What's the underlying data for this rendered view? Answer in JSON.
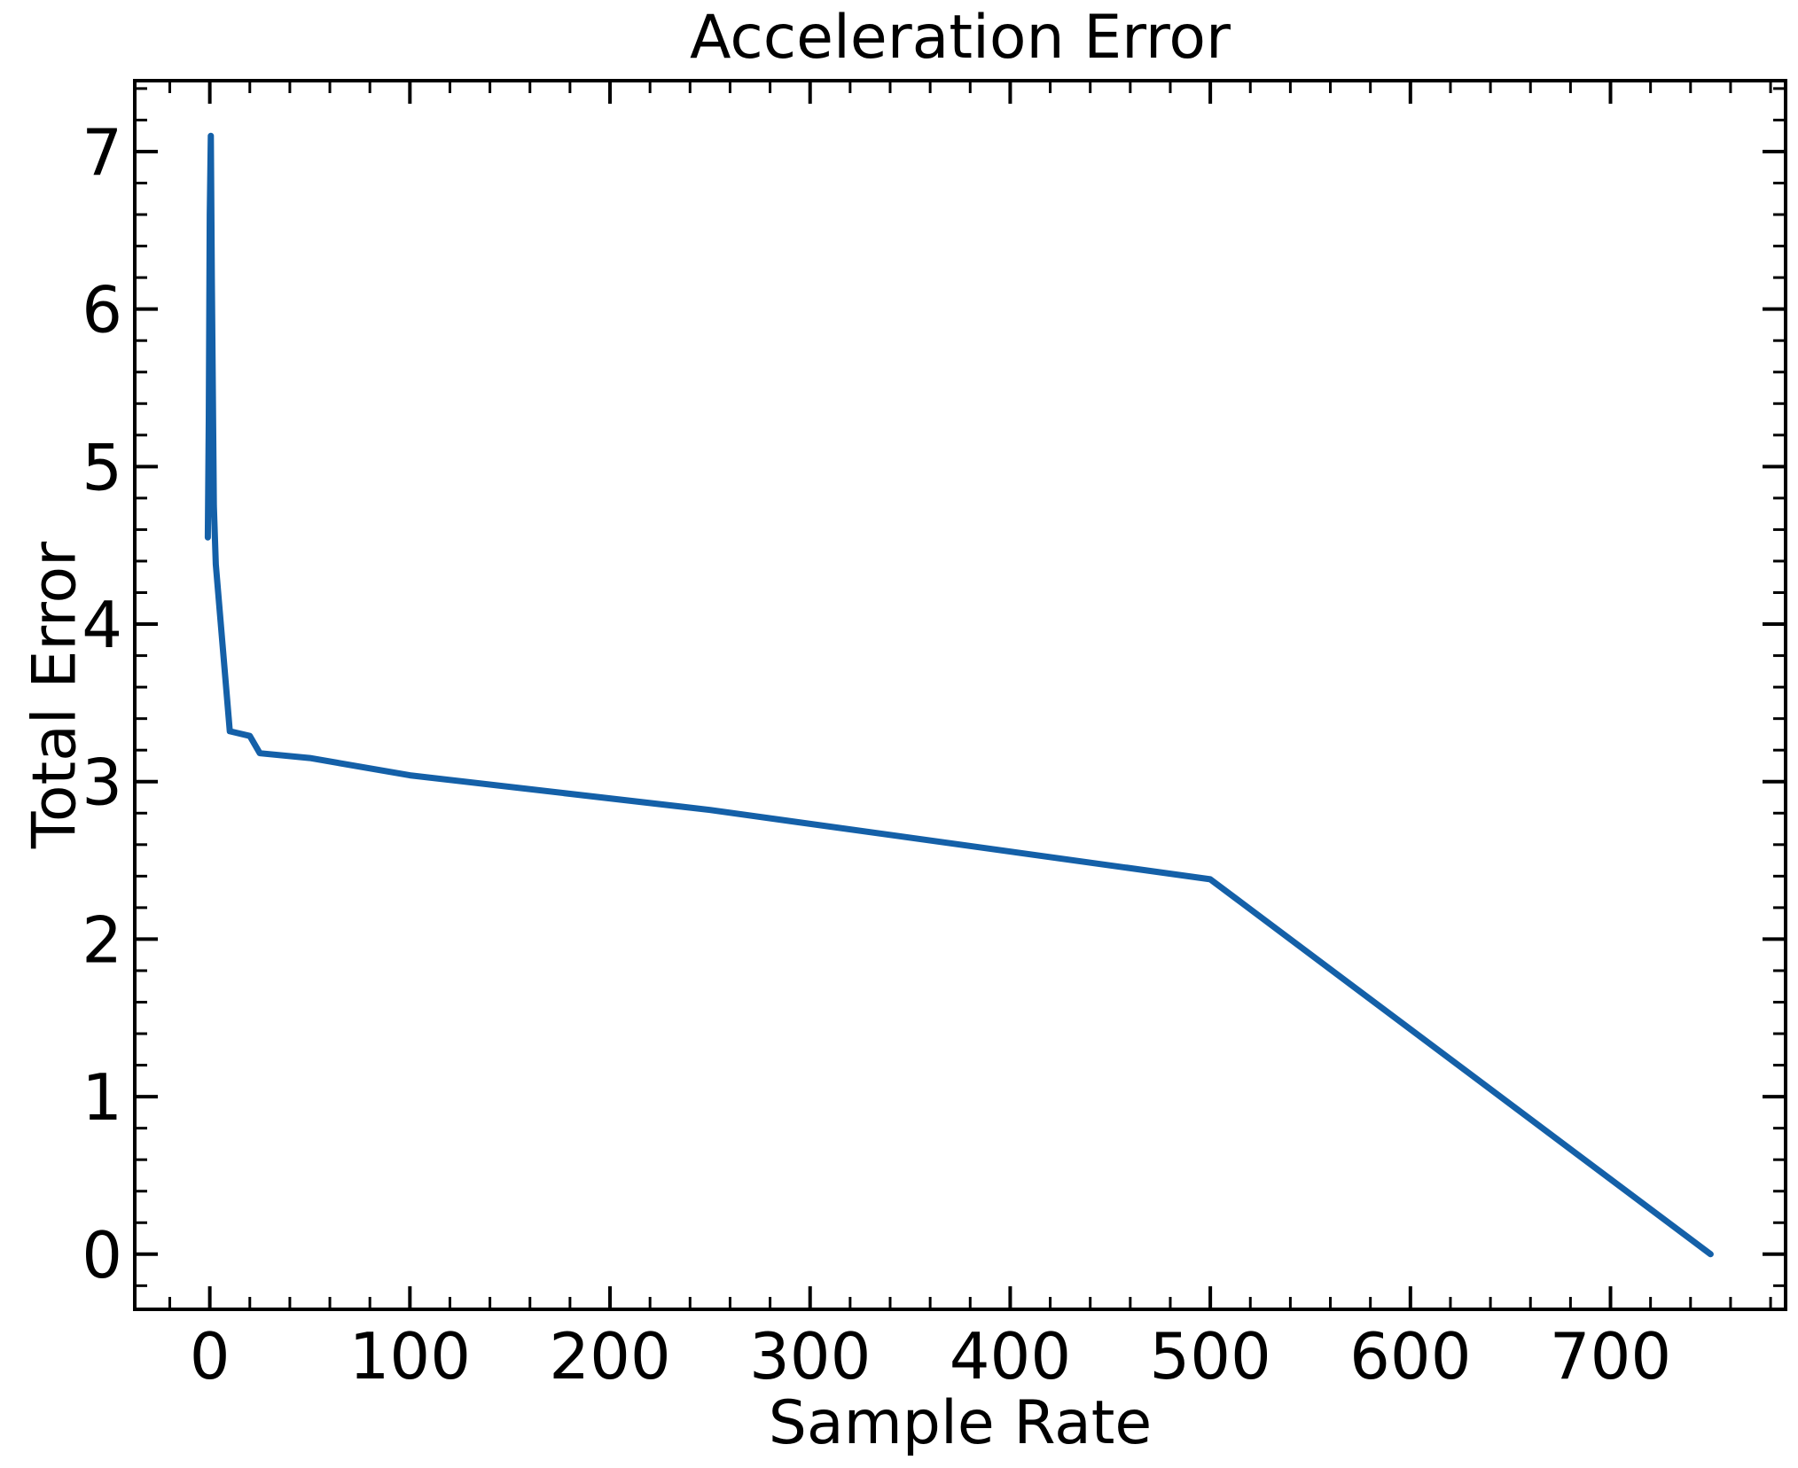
{
  "chart_data": {
    "type": "line",
    "title": "Acceleration Error",
    "xlabel": "Sample Rate",
    "ylabel": "Total Error",
    "xlim": [
      -37.5,
      787.5
    ],
    "ylim": [
      -0.35,
      7.45
    ],
    "xticks": [
      0,
      100,
      200,
      300,
      400,
      500,
      600,
      700
    ],
    "xtick_labels": [
      "0",
      "100",
      "200",
      "300",
      "400",
      "500",
      "600",
      "700"
    ],
    "yticks": [
      0,
      1,
      2,
      3,
      4,
      5,
      6,
      7
    ],
    "ytick_labels": [
      "0",
      "1",
      "2",
      "3",
      "4",
      "5",
      "6",
      "7"
    ],
    "x_minor_step": 20,
    "y_minor_step": 0.2,
    "grid": false,
    "legend": "none",
    "series": [
      {
        "color": "#1460a8",
        "x": [
          -1,
          -0.5,
          0,
          0.5,
          1,
          2,
          3,
          10,
          20,
          25,
          50,
          100,
          250,
          500,
          750
        ],
        "y": [
          4.55,
          5.3,
          6.6,
          7.1,
          6.2,
          4.75,
          4.38,
          3.32,
          3.29,
          3.18,
          3.15,
          3.04,
          2.82,
          2.38,
          0.0
        ]
      }
    ]
  }
}
